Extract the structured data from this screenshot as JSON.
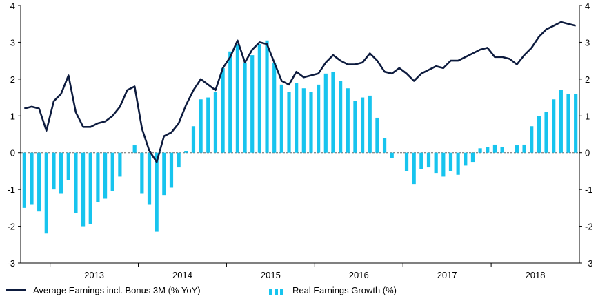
{
  "colors": {
    "line": "#0d1b3e",
    "bars": "#17c4ee",
    "axis": "#000000",
    "zero_line": "#666666"
  },
  "chart_data": {
    "type": "bar+line",
    "title": "",
    "xlabel": "",
    "ylabel": "",
    "ylim": [
      -3,
      4
    ],
    "y_ticks": [
      "-3",
      "-2",
      "-1",
      "0",
      "1",
      "2",
      "3",
      "4"
    ],
    "y2_ticks": [
      "-3",
      "-2",
      "-1",
      "0",
      "1",
      "2",
      "3",
      "4"
    ],
    "year_labels": [
      "2013",
      "2014",
      "2015",
      "2016",
      "2017",
      "2018"
    ],
    "start_month": "2012-09",
    "series": [
      {
        "name": "Average Earnings incl. Bonus 3M (% YoY)",
        "kind": "line",
        "values": [
          1.2,
          1.25,
          1.2,
          0.6,
          1.4,
          1.6,
          2.1,
          1.1,
          0.7,
          0.7,
          0.8,
          0.85,
          1.0,
          1.25,
          1.7,
          1.8,
          0.65,
          0.05,
          -0.25,
          0.45,
          0.55,
          0.8,
          1.3,
          1.7,
          2.0,
          1.85,
          1.7,
          2.3,
          2.6,
          3.05,
          2.45,
          2.8,
          3.0,
          2.95,
          2.45,
          1.95,
          1.85,
          2.2,
          2.05,
          2.1,
          2.15,
          2.45,
          2.65,
          2.5,
          2.4,
          2.4,
          2.45,
          2.7,
          2.5,
          2.2,
          2.15,
          2.3,
          2.15,
          1.95,
          2.15,
          2.25,
          2.35,
          2.3,
          2.5,
          2.5,
          2.6,
          2.7,
          2.8,
          2.85,
          2.6,
          2.6,
          2.55,
          2.4,
          2.65,
          2.85,
          3.15,
          3.35,
          3.45,
          3.55,
          3.5,
          3.45
        ]
      },
      {
        "name": "Real Earnings Growth (%)",
        "kind": "bar",
        "values": [
          -1.5,
          -1.4,
          -1.6,
          -2.2,
          -1.0,
          -1.1,
          -0.75,
          -1.65,
          -2.0,
          -1.95,
          -1.35,
          -1.25,
          -1.05,
          -0.65,
          0.0,
          0.2,
          -1.1,
          -1.4,
          -2.15,
          -1.15,
          -0.95,
          -0.4,
          0.05,
          0.72,
          1.45,
          1.5,
          1.65,
          2.3,
          2.75,
          2.95,
          2.45,
          2.65,
          2.95,
          3.05,
          2.45,
          1.85,
          1.65,
          1.9,
          1.75,
          1.65,
          1.85,
          2.15,
          2.2,
          1.95,
          1.75,
          1.4,
          1.5,
          1.55,
          0.95,
          0.4,
          -0.15,
          0.0,
          -0.5,
          -0.85,
          -0.45,
          -0.4,
          -0.55,
          -0.65,
          -0.5,
          -0.6,
          -0.35,
          -0.25,
          0.12,
          0.15,
          0.22,
          0.15,
          0.0,
          0.2,
          0.22,
          0.72,
          1.0,
          1.1,
          1.45,
          1.7,
          1.6,
          1.6
        ]
      }
    ]
  },
  "legend": {
    "line_label": "Average Earnings incl. Bonus 3M (% YoY)",
    "bar_label": "Real Earnings Growth (%)"
  }
}
